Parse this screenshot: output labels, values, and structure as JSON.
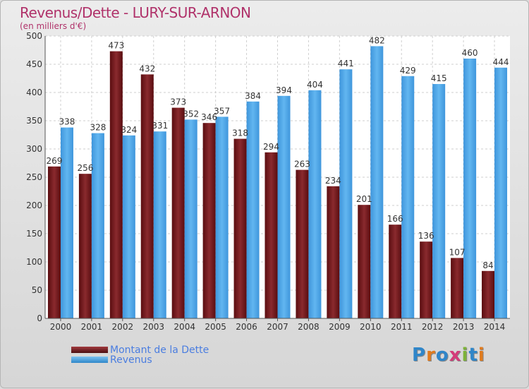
{
  "chart_data": {
    "type": "bar",
    "title": "Revenus/Dette - LURY-SUR-ARNON",
    "subtitle": "(en milliers d'€)",
    "categories": [
      "2000",
      "2001",
      "2002",
      "2003",
      "2004",
      "2005",
      "2006",
      "2007",
      "2008",
      "2009",
      "2010",
      "2011",
      "2012",
      "2013",
      "2014"
    ],
    "series": [
      {
        "name": "Montant de la Dette",
        "values": [
          269,
          256,
          473,
          432,
          373,
          346,
          318,
          294,
          263,
          234,
          201,
          166,
          136,
          107,
          84
        ],
        "color": "#7a1e22"
      },
      {
        "name": "Revenus",
        "values": [
          338,
          328,
          324,
          331,
          352,
          357,
          384,
          394,
          404,
          441,
          482,
          429,
          415,
          460,
          444
        ],
        "color": "#4aa3e6"
      }
    ],
    "ylim": [
      0,
      500
    ],
    "yticks": [
      0,
      50,
      100,
      150,
      200,
      250,
      300,
      350,
      400,
      450,
      500
    ],
    "grid": true,
    "legend_position": "bottom-left"
  },
  "logo": {
    "text": "Proxiti"
  }
}
